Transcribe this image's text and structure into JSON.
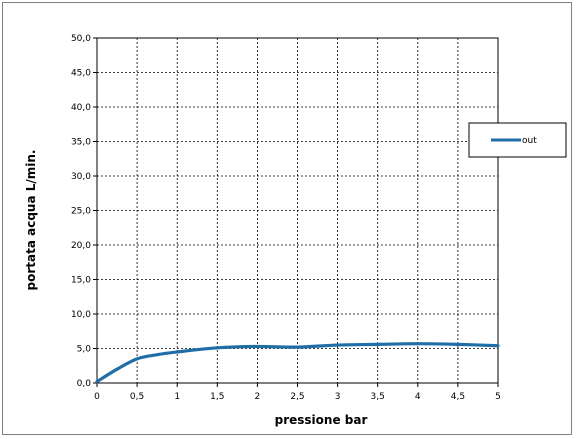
{
  "chart_data": {
    "type": "line",
    "xlabel": "pressione bar",
    "ylabel": "portata acqua  L/min.",
    "xlim": [
      0,
      5
    ],
    "ylim": [
      0,
      50
    ],
    "x_ticks": [
      "0",
      "0,5",
      "1",
      "1,5",
      "2",
      "2,5",
      "3",
      "3,5",
      "4",
      "4,5",
      "5"
    ],
    "y_ticks": [
      "0,0",
      "5,0",
      "10,0",
      "15,0",
      "20,0",
      "25,0",
      "30,0",
      "35,0",
      "40,0",
      "45,0",
      "50,0"
    ],
    "grid": true,
    "legend_position": "right",
    "series": [
      {
        "name": "out",
        "color": "#1f6ea8",
        "x": [
          0,
          0.25,
          0.5,
          0.75,
          1,
          1.5,
          2,
          2.5,
          3,
          3.5,
          4,
          4.5,
          5
        ],
        "y": [
          0.2,
          2.0,
          3.5,
          4.1,
          4.5,
          5.1,
          5.3,
          5.2,
          5.5,
          5.6,
          5.7,
          5.6,
          5.4
        ]
      }
    ]
  }
}
